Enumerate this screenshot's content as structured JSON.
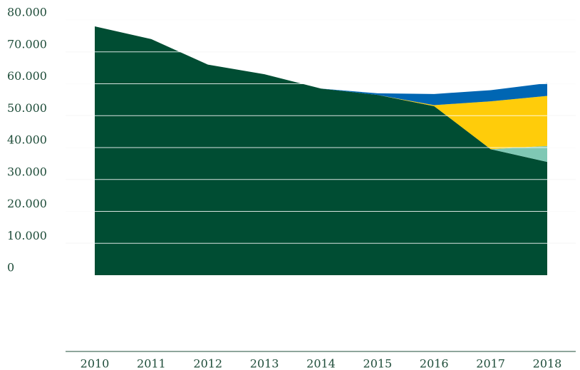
{
  "chart_data": {
    "type": "stacked_area",
    "categories": [
      "2010",
      "2011",
      "2012",
      "2013",
      "2014",
      "2015",
      "2016",
      "2017",
      "2018"
    ],
    "series": [
      {
        "color": "#004d33",
        "values": [
          78000,
          74000,
          66000,
          63000,
          58500,
          56500,
          53000,
          39500,
          35500
        ]
      },
      {
        "color": "#7fc8b4",
        "values": [
          0,
          0,
          0,
          0,
          0,
          0,
          0,
          0,
          5000
        ]
      },
      {
        "color": "#ffcc0a",
        "values": [
          0,
          0,
          0,
          0,
          0,
          0,
          300,
          15000,
          15700
        ]
      },
      {
        "color": "#0066b3",
        "values": [
          0,
          0,
          0,
          0,
          0,
          500,
          3500,
          3500,
          4000
        ]
      }
    ],
    "ylim": [
      0,
      80000
    ],
    "yticks": [
      0,
      {
        "value": 10000,
        "label": "10.000"
      },
      {
        "value": 20000,
        "label": "20.000"
      },
      {
        "value": 30000,
        "label": "30.000"
      },
      {
        "value": 40000,
        "label": "40.000"
      },
      {
        "value": 50000,
        "label": "50.000"
      },
      {
        "value": 60000,
        "label": "60.000"
      },
      {
        "value": 70000,
        "label": "70.000"
      },
      {
        "value": 80000,
        "label": "80.000"
      }
    ],
    "grid": true
  }
}
